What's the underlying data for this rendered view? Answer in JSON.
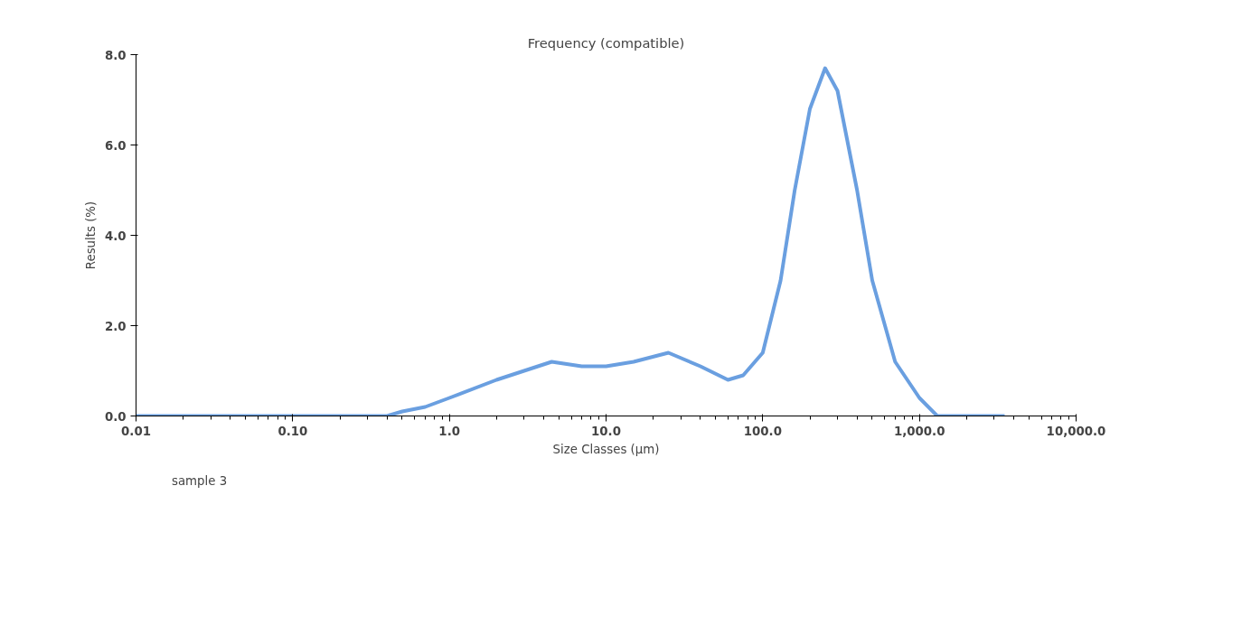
{
  "chart_data": {
    "type": "line",
    "title": "Frequency (compatible)",
    "xlabel": "Size Classes (µm)",
    "ylabel": "Results (%)",
    "log": "x",
    "grid": false,
    "legend": "bottom left",
    "marker": "none",
    "line_style": "solid",
    "xlim": [
      0.01,
      10000
    ],
    "ylim": [
      0,
      8
    ],
    "xticks": [
      {
        "value": 0.01,
        "label": "0.01"
      },
      {
        "value": 0.1,
        "label": "0.10"
      },
      {
        "value": 1,
        "label": "1.0"
      },
      {
        "value": 10,
        "label": "10.0"
      },
      {
        "value": 100,
        "label": "100.0"
      },
      {
        "value": 1000,
        "label": "1,000.0"
      },
      {
        "value": 10000,
        "label": "10,000.0"
      }
    ],
    "yticks": [
      {
        "value": 0,
        "label": "0.0"
      },
      {
        "value": 2,
        "label": "2.0"
      },
      {
        "value": 4,
        "label": "4.0"
      },
      {
        "value": 6,
        "label": "6.0"
      },
      {
        "value": 8,
        "label": "8.0"
      }
    ],
    "series": [
      {
        "name": "sample 3",
        "color": "#6a9fe0",
        "x": [
          0.01,
          0.1,
          0.4,
          0.5,
          0.7,
          1.0,
          2,
          3,
          4.5,
          7,
          10,
          15,
          25,
          40,
          60,
          75,
          100,
          130,
          160,
          200,
          250,
          300,
          400,
          500,
          700,
          1000,
          1300,
          1500,
          3500
        ],
        "values": [
          0,
          0,
          0,
          0.1,
          0.2,
          0.4,
          0.8,
          1.0,
          1.2,
          1.1,
          1.1,
          1.2,
          1.4,
          1.1,
          0.8,
          0.9,
          1.4,
          3.0,
          5.0,
          6.8,
          7.7,
          7.2,
          5.0,
          3.0,
          1.2,
          0.4,
          0,
          0,
          0
        ]
      }
    ]
  }
}
